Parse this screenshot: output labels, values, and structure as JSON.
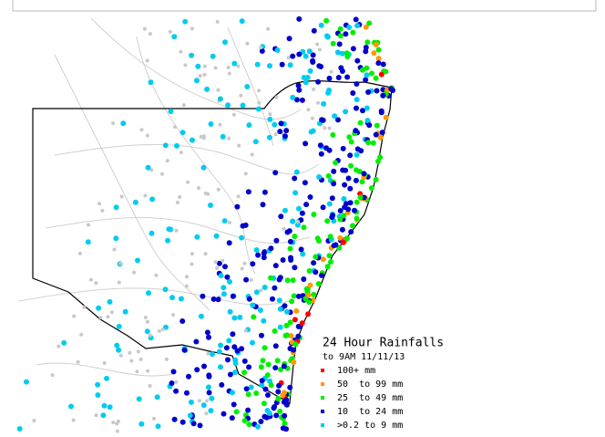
{
  "legend": {
    "title": "24 Hour Rainfalls",
    "subtitle": "to 9AM 11/11/13",
    "items": [
      {
        "label": "100+ mm",
        "color": "#ff0000"
      },
      {
        "label": "50  to 99 mm",
        "color": "#ff9900"
      },
      {
        "label": "25  to 49 mm",
        "color": "#00ee00"
      },
      {
        "label": "10  to 24 mm",
        "color": "#0000cc"
      },
      {
        "label": ">0.2 to 9 mm",
        "color": "#00ccee"
      }
    ]
  }
}
